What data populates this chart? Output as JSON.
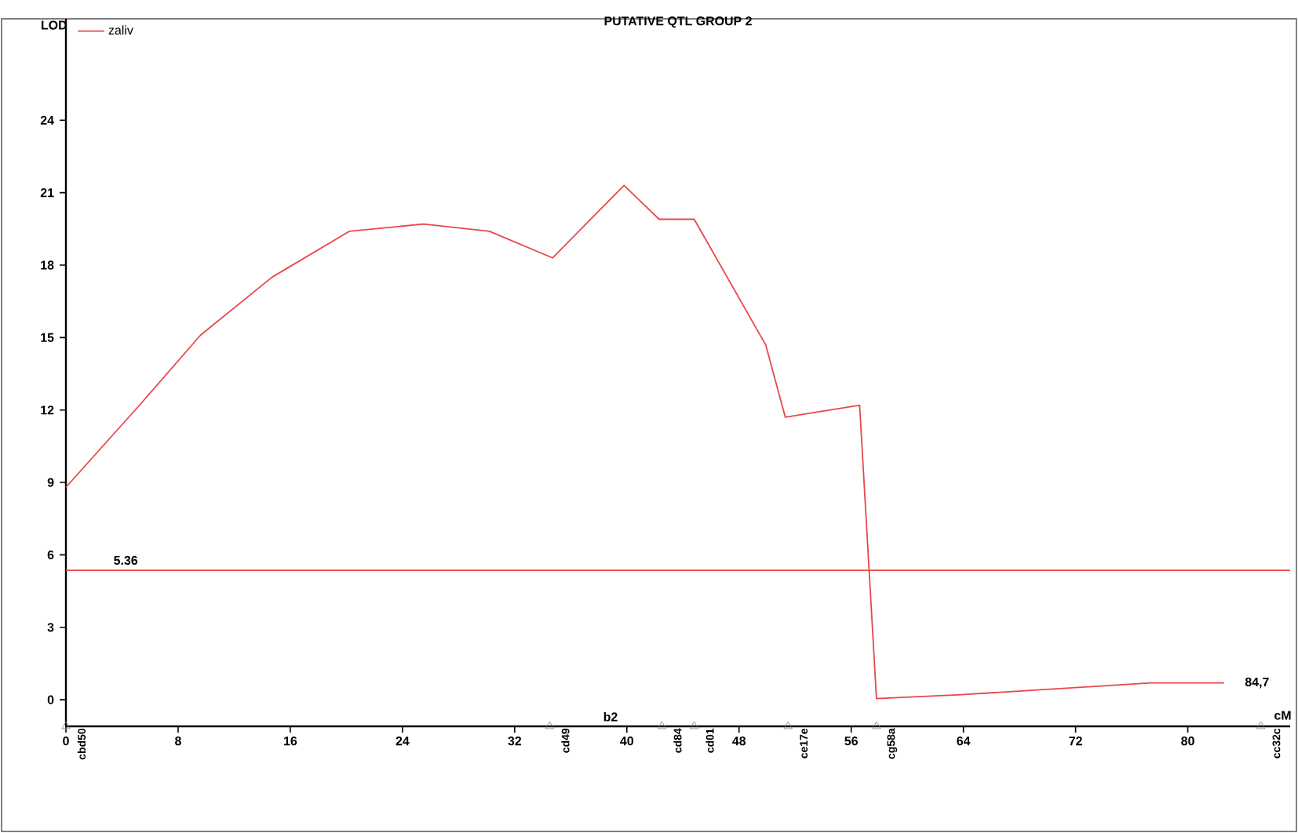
{
  "chart_data": {
    "type": "line",
    "title": "PUTATIVE QTL GROUP 2",
    "xlabel": "cM",
    "ylabel": "LOD",
    "x": [
      0,
      5.4,
      9.6,
      14.7,
      20.2,
      25.5,
      30.2,
      34.7,
      39.8,
      42.3,
      44.8,
      49.9,
      51.3,
      56.6,
      57.8,
      63.6,
      77.4,
      82.6
    ],
    "series": [
      {
        "name": "zaliv",
        "color": "#e8474a",
        "values": [
          8.8,
          12.3,
          15.1,
          17.5,
          19.4,
          19.7,
          19.4,
          18.3,
          21.3,
          19.9,
          19.9,
          14.7,
          11.7,
          12.2,
          0.05,
          0.2,
          0.7,
          0.7
        ]
      },
      {
        "type": "scatter",
        "color": "#808080",
        "marker": "triangle",
        "x": [
          0,
          34.5,
          42.5,
          44.8,
          51.5,
          57.8,
          85.2
        ],
        "values": [
          -1.1,
          -1.1,
          -1.1,
          -1.1,
          -1.1,
          -1.1,
          -1.1
        ],
        "value_labels": [
          "cbd50",
          "cd49",
          "cd84",
          "cd01",
          "ce17e",
          "cg58a",
          "cc32c"
        ]
      }
    ],
    "xlim": [
      0,
      87.3
    ],
    "ylim": [
      -1.1,
      28.2
    ],
    "xticks": [
      0,
      8,
      16,
      24,
      32,
      40,
      48,
      56,
      64,
      72,
      80
    ],
    "yticks": [
      0,
      3,
      6,
      9,
      12,
      15,
      18,
      21,
      24
    ],
    "legend": "top left",
    "marker": "none",
    "line_style": "solid",
    "ref_lines": [
      {
        "axis": "y",
        "value": 5.36,
        "label": "5.36",
        "color": "#e8474a"
      }
    ],
    "annotations": [
      "84,7",
      "b2"
    ]
  }
}
